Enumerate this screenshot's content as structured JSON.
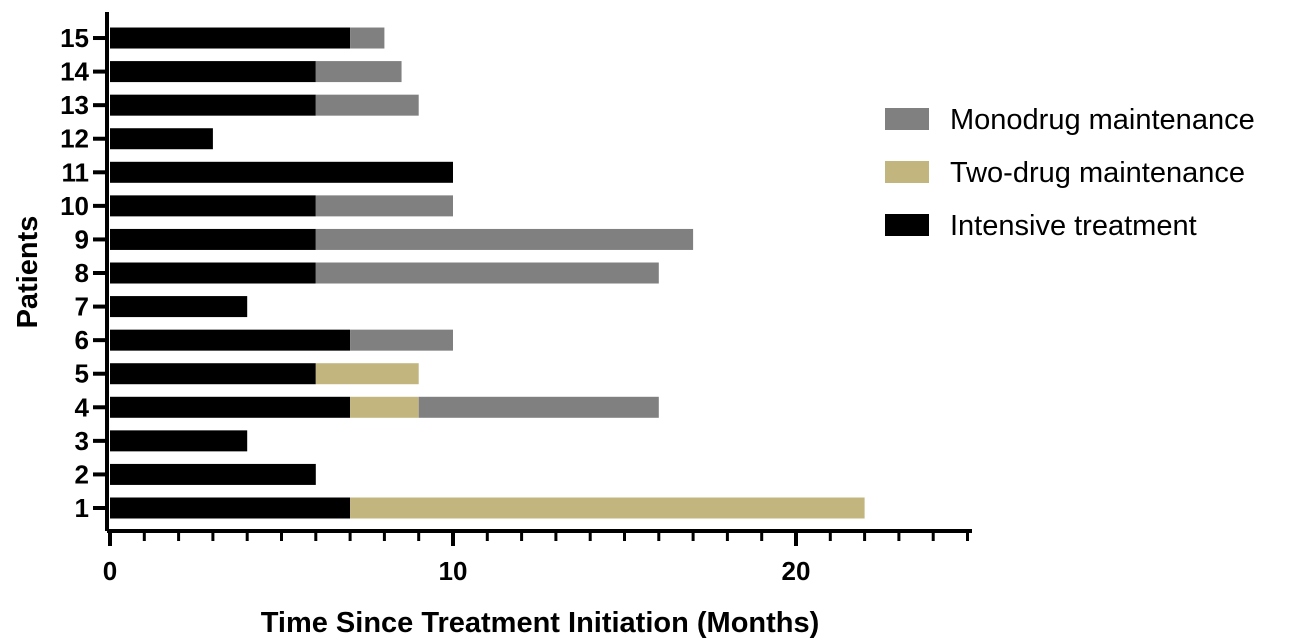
{
  "chart_data": {
    "type": "bar",
    "orientation": "horizontal",
    "stacked": true,
    "title": "",
    "xlabel": "Time Since Treatment Initiation (Months)",
    "ylabel": "Patients",
    "xlim": [
      0,
      25
    ],
    "x_ticks": [
      0,
      10,
      20
    ],
    "categories": [
      "1",
      "2",
      "3",
      "4",
      "5",
      "6",
      "7",
      "8",
      "9",
      "10",
      "11",
      "12",
      "13",
      "14",
      "15"
    ],
    "segments": [
      [
        {
          "phase": "intensive",
          "start": 0,
          "end": 7
        },
        {
          "phase": "two_drug",
          "start": 7,
          "end": 22
        }
      ],
      [
        {
          "phase": "intensive",
          "start": 0,
          "end": 6
        }
      ],
      [
        {
          "phase": "intensive",
          "start": 0,
          "end": 4
        }
      ],
      [
        {
          "phase": "intensive",
          "start": 0,
          "end": 7
        },
        {
          "phase": "two_drug",
          "start": 7,
          "end": 9
        },
        {
          "phase": "monodrug",
          "start": 9,
          "end": 16
        }
      ],
      [
        {
          "phase": "intensive",
          "start": 0,
          "end": 6
        },
        {
          "phase": "two_drug",
          "start": 6,
          "end": 9
        }
      ],
      [
        {
          "phase": "intensive",
          "start": 0,
          "end": 7
        },
        {
          "phase": "monodrug",
          "start": 7,
          "end": 10
        }
      ],
      [
        {
          "phase": "intensive",
          "start": 0,
          "end": 4
        }
      ],
      [
        {
          "phase": "intensive",
          "start": 0,
          "end": 6
        },
        {
          "phase": "monodrug",
          "start": 6,
          "end": 16
        }
      ],
      [
        {
          "phase": "intensive",
          "start": 0,
          "end": 6
        },
        {
          "phase": "monodrug",
          "start": 6,
          "end": 17
        }
      ],
      [
        {
          "phase": "intensive",
          "start": 0,
          "end": 6
        },
        {
          "phase": "monodrug",
          "start": 6,
          "end": 10
        }
      ],
      [
        {
          "phase": "intensive",
          "start": 0,
          "end": 10
        }
      ],
      [
        {
          "phase": "intensive",
          "start": 0,
          "end": 3
        }
      ],
      [
        {
          "phase": "intensive",
          "start": 0,
          "end": 6
        },
        {
          "phase": "monodrug",
          "start": 6,
          "end": 9
        }
      ],
      [
        {
          "phase": "intensive",
          "start": 0,
          "end": 6
        },
        {
          "phase": "monodrug",
          "start": 6,
          "end": 8.5
        }
      ],
      [
        {
          "phase": "intensive",
          "start": 0,
          "end": 7
        },
        {
          "phase": "monodrug",
          "start": 7,
          "end": 8
        }
      ]
    ],
    "legend": {
      "placement": "right",
      "entries": [
        {
          "key": "monodrug",
          "label": "Monodrug maintenance",
          "color": "#808080"
        },
        {
          "key": "two_drug",
          "label": "Two-drug maintenance",
          "color": "#C2B57E"
        },
        {
          "key": "intensive",
          "label": "Intensive treatment",
          "color": "#000000"
        }
      ]
    },
    "grid": false
  }
}
